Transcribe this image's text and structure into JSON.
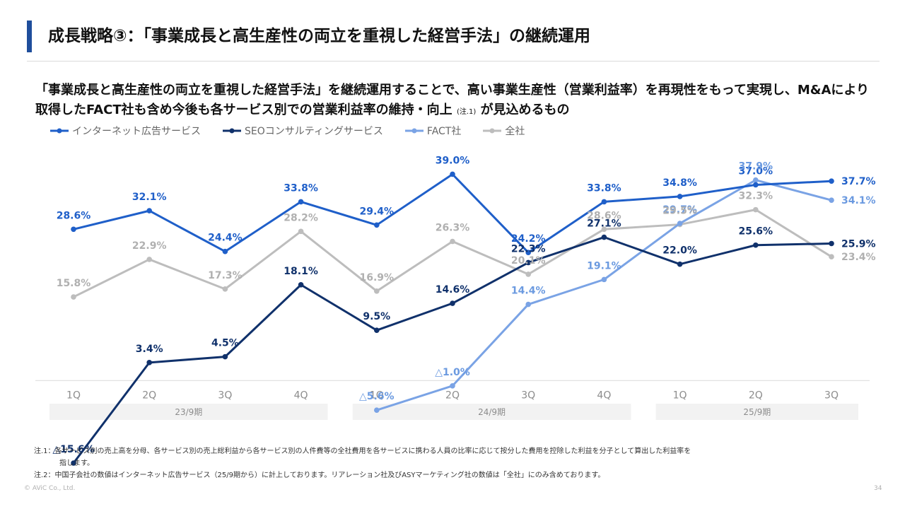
{
  "page": {
    "title": "成長戦略③：「事業成長と高生産性の両立を重視した経営手法」の継続運用",
    "lead_main": "「事業成長と高生産性の両立を重視した経営手法」を継続運用することで、高い事業生産性（営業利益率）を再現性をもって実現し、M&Aにより取得したFACT社も含め今後も各サービス別での営業利益率の維持・向上",
    "lead_note_ref": "(注.1)",
    "lead_end": "が見込めるもの",
    "footnotes": [
      {
        "label": "注.1：",
        "text": "各サービス別の売上高を分母、各サービス別の売上総利益から各サービス別の人件費等の全社費用を各サービスに携わる人員の比率に応じて按分した費用を控除した利益を分子として算出した利益率を"
      },
      {
        "label": "",
        "text": "指します。"
      },
      {
        "label": "注.2：",
        "text": "中国子会社の数値はインターネット広告サービス（25/9期から）に計上しております。リアレーション社及びASYマーケティング社の数値は「全社」にのみ含めております。"
      }
    ],
    "copyright": "© AViC Co., Ltd.",
    "page_number": "34"
  },
  "chart_data": {
    "type": "line",
    "categories": [
      "1Q",
      "2Q",
      "3Q",
      "4Q",
      "1Q",
      "2Q",
      "3Q",
      "4Q",
      "1Q",
      "2Q",
      "3Q"
    ],
    "periods": [
      {
        "label": "23/9期",
        "from": 0,
        "to": 3
      },
      {
        "label": "24/9期",
        "from": 4,
        "to": 7
      },
      {
        "label": "25/9期",
        "from": 8,
        "to": 10
      }
    ],
    "ylim": [
      -16,
      40
    ],
    "grid": false,
    "legend_position": "top-left",
    "negative_prefix": "△",
    "series": [
      {
        "name": "インターネット広告サービス",
        "color": "#1f5fc9",
        "label_color": "#1f5fc9",
        "values": [
          28.6,
          32.1,
          24.4,
          33.8,
          29.4,
          39.0,
          24.2,
          33.8,
          34.8,
          37.0,
          37.7
        ]
      },
      {
        "name": "SEOコンサルティングサービス",
        "color": "#10316b",
        "label_color": "#10316b",
        "values": [
          -15.6,
          3.4,
          4.5,
          18.1,
          9.5,
          14.6,
          22.3,
          27.1,
          22.0,
          25.6,
          25.9
        ]
      },
      {
        "name": "FACT社",
        "color": "#7aa3e5",
        "label_color": "#6b9ae0",
        "values": [
          null,
          null,
          null,
          null,
          -5.6,
          -1.0,
          14.4,
          19.1,
          29.7,
          37.9,
          34.1
        ]
      },
      {
        "name": "全社",
        "color": "#bdbdbd",
        "label_color": "#b0b0b0",
        "values": [
          15.8,
          22.9,
          17.3,
          28.2,
          16.9,
          26.3,
          20.1,
          28.6,
          29.5,
          32.3,
          23.4
        ]
      }
    ]
  }
}
